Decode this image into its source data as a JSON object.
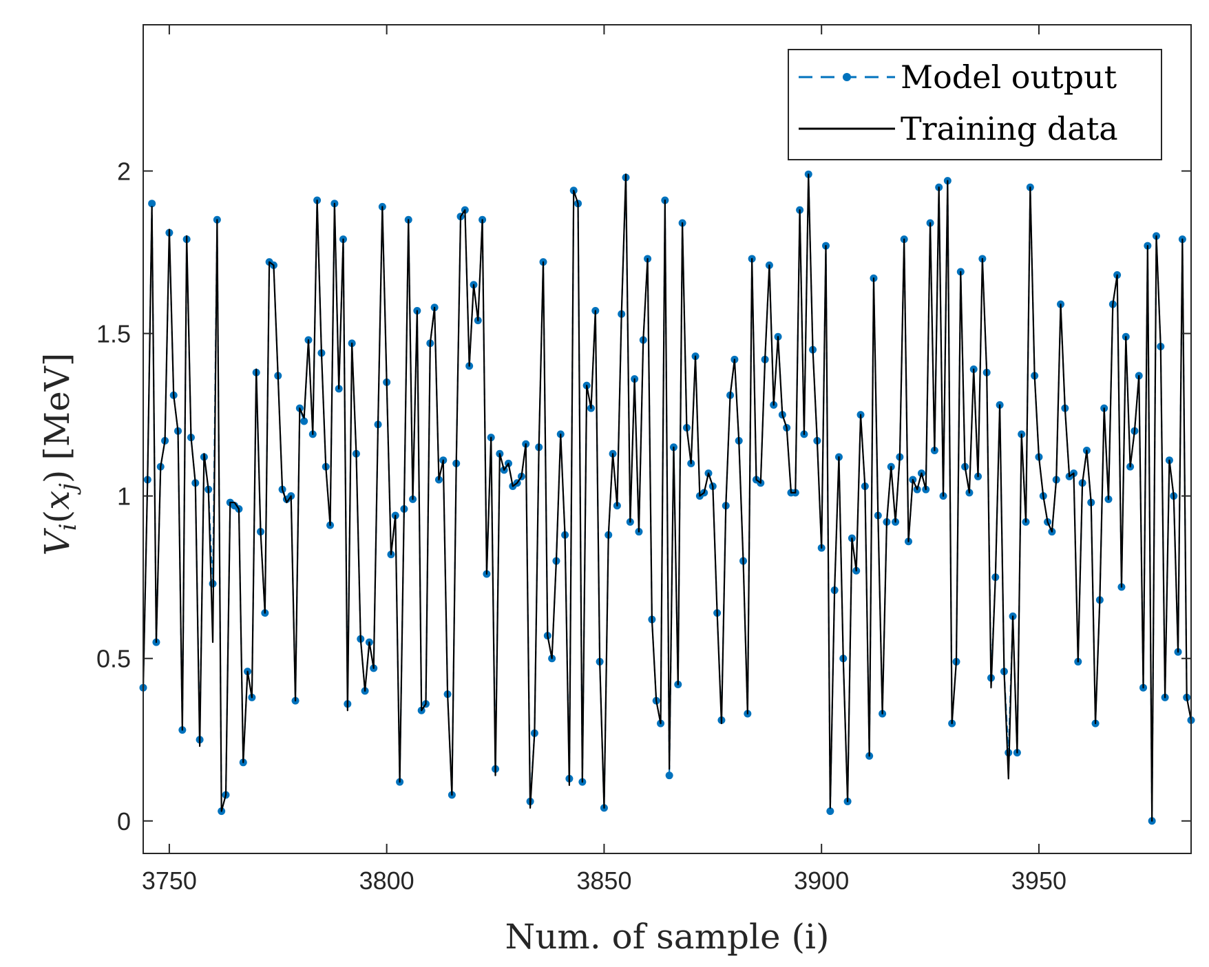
{
  "chart_data": {
    "type": "line",
    "xlabel": "Num. of sample (i)",
    "ylabel_main": "V",
    "ylabel_sub": "i",
    "ylabel_paren_open": "(",
    "ylabel_x": "x",
    "ylabel_x_sub": "j",
    "ylabel_paren_close": ")",
    "ylabel_unit": "[MeV]",
    "xlim": [
      3744,
      3985
    ],
    "ylim": [
      -0.1,
      2.45
    ],
    "x_ticks": [
      3750,
      3800,
      3850,
      3900,
      3950
    ],
    "x_tick_labels": [
      "3750",
      "3800",
      "3850",
      "3900",
      "3950"
    ],
    "y_ticks": [
      0,
      0.5,
      1,
      1.5,
      2
    ],
    "y_tick_labels": [
      "0",
      "0.5",
      "1",
      "1.5",
      "2"
    ],
    "grid": false,
    "legend_position": "top-right",
    "x_start": 3744,
    "series": [
      {
        "name": "Model output",
        "color": "#0072BD",
        "style": "dashed-with-dots",
        "values": [
          0.41,
          1.05,
          1.9,
          0.55,
          1.09,
          1.17,
          1.81,
          1.31,
          1.2,
          0.28,
          1.79,
          1.18,
          1.04,
          0.25,
          1.12,
          1.02,
          0.73,
          1.85,
          0.03,
          0.08,
          0.98,
          0.97,
          0.96,
          0.18,
          0.46,
          0.38,
          1.38,
          0.89,
          0.64,
          1.72,
          1.71,
          1.37,
          1.02,
          0.99,
          1.0,
          0.37,
          1.27,
          1.23,
          1.48,
          1.19,
          1.91,
          1.44,
          1.09,
          0.91,
          1.9,
          1.33,
          1.79,
          0.36,
          1.47,
          1.13,
          0.56,
          0.4,
          0.55,
          0.47,
          1.22,
          1.89,
          1.35,
          0.82,
          0.94,
          0.12,
          0.96,
          1.85,
          0.99,
          1.57,
          0.34,
          0.36,
          1.47,
          1.58,
          1.05,
          1.11,
          0.39,
          0.08,
          1.1,
          1.86,
          1.88,
          1.4,
          1.65,
          1.54,
          1.85,
          0.76,
          1.18,
          0.16,
          1.13,
          1.08,
          1.1,
          1.03,
          1.04,
          1.06,
          1.16,
          0.06,
          0.27,
          1.15,
          1.72,
          0.57,
          0.5,
          0.8,
          1.19,
          0.88,
          0.13,
          1.94,
          1.9,
          0.12,
          1.34,
          1.27,
          1.57,
          0.49,
          0.04,
          0.88,
          1.13,
          0.97,
          1.56,
          1.98,
          0.92,
          1.36,
          0.89,
          1.48,
          1.73,
          0.62,
          0.37,
          0.3,
          1.91,
          0.14,
          1.15,
          0.42,
          1.84,
          1.21,
          1.1,
          1.43,
          1.0,
          1.01,
          1.07,
          1.03,
          0.64,
          0.31,
          0.97,
          1.31,
          1.42,
          1.17,
          0.8,
          0.33,
          1.73,
          1.05,
          1.04,
          1.42,
          1.71,
          1.28,
          1.49,
          1.25,
          1.21,
          1.01,
          1.01,
          1.88,
          1.19,
          1.99,
          1.45,
          1.17,
          0.84,
          1.77,
          0.03,
          0.71,
          1.12,
          0.5,
          0.06,
          0.87,
          0.77,
          1.25,
          1.03,
          0.2,
          1.67,
          0.94,
          0.33,
          0.92,
          1.09,
          0.92,
          1.12,
          1.79,
          0.86,
          1.05,
          1.02,
          1.07,
          1.02,
          1.84,
          1.14,
          1.95,
          1.0,
          1.97,
          0.3,
          0.49,
          1.69,
          1.09,
          1.01,
          1.39,
          1.06,
          1.73,
          1.38,
          0.44,
          0.75,
          1.28,
          0.46,
          0.21,
          0.63,
          0.21,
          1.19,
          0.92,
          1.95,
          1.37,
          1.12,
          1.0,
          0.92,
          0.89,
          1.05,
          1.59,
          1.27,
          1.06,
          1.07,
          0.49,
          1.04,
          1.14,
          0.98,
          0.3,
          0.68,
          1.27,
          0.99,
          1.59,
          1.68,
          0.72,
          1.49,
          1.09,
          1.2,
          1.37,
          0.41,
          1.77,
          0.0,
          1.8,
          1.46,
          0.38,
          1.11,
          1.0,
          0.52,
          1.79,
          0.38,
          0.31
        ]
      },
      {
        "name": "Training data",
        "color": "#000000",
        "style": "solid",
        "values": [
          0.41,
          1.05,
          1.89,
          0.55,
          1.09,
          1.17,
          1.82,
          1.31,
          1.2,
          0.28,
          1.8,
          1.18,
          1.04,
          0.23,
          1.13,
          1.02,
          0.55,
          1.85,
          0.03,
          0.08,
          0.98,
          0.98,
          0.96,
          0.18,
          0.46,
          0.38,
          1.39,
          0.89,
          0.64,
          1.72,
          1.71,
          1.37,
          1.02,
          0.98,
          1.0,
          0.37,
          1.27,
          1.24,
          1.48,
          1.19,
          1.91,
          1.44,
          1.09,
          0.91,
          1.9,
          1.33,
          1.79,
          0.34,
          1.47,
          1.13,
          0.56,
          0.4,
          0.55,
          0.47,
          1.22,
          1.89,
          1.35,
          0.82,
          0.94,
          0.12,
          0.96,
          1.85,
          0.99,
          1.57,
          0.34,
          0.36,
          1.47,
          1.58,
          1.05,
          1.11,
          0.39,
          0.08,
          1.1,
          1.86,
          1.88,
          1.4,
          1.65,
          1.54,
          1.85,
          0.76,
          1.18,
          0.14,
          1.13,
          1.08,
          1.1,
          1.03,
          1.04,
          1.06,
          1.16,
          0.04,
          0.27,
          1.15,
          1.72,
          0.57,
          0.5,
          0.8,
          1.19,
          0.88,
          0.11,
          1.94,
          1.9,
          0.12,
          1.34,
          1.27,
          1.57,
          0.49,
          0.04,
          0.88,
          1.13,
          0.97,
          1.56,
          1.99,
          0.92,
          1.36,
          0.89,
          1.48,
          1.73,
          0.62,
          0.37,
          0.3,
          1.91,
          0.16,
          1.15,
          0.42,
          1.84,
          1.21,
          1.1,
          1.43,
          1.0,
          1.01,
          1.07,
          1.03,
          0.64,
          0.3,
          0.97,
          1.31,
          1.42,
          1.17,
          0.8,
          0.33,
          1.73,
          1.05,
          1.04,
          1.42,
          1.71,
          1.28,
          1.49,
          1.25,
          1.21,
          1.01,
          1.01,
          1.88,
          1.19,
          1.99,
          1.45,
          1.17,
          0.84,
          1.77,
          0.04,
          0.71,
          1.12,
          0.5,
          0.06,
          0.87,
          0.77,
          1.25,
          1.03,
          0.2,
          1.67,
          0.94,
          0.33,
          0.92,
          1.09,
          0.92,
          1.12,
          1.79,
          0.86,
          1.05,
          1.02,
          1.07,
          1.02,
          1.84,
          1.14,
          1.95,
          1.0,
          1.97,
          0.3,
          0.49,
          1.69,
          1.09,
          1.01,
          1.39,
          1.06,
          1.73,
          1.38,
          0.41,
          0.75,
          1.28,
          0.46,
          0.13,
          0.63,
          0.21,
          1.19,
          0.92,
          1.95,
          1.37,
          1.12,
          1.0,
          0.92,
          0.89,
          1.05,
          1.59,
          1.27,
          1.06,
          1.07,
          0.49,
          1.04,
          1.14,
          0.98,
          0.3,
          0.68,
          1.27,
          0.99,
          1.59,
          1.68,
          0.72,
          1.49,
          1.09,
          1.2,
          1.37,
          0.41,
          1.77,
          0.0,
          1.8,
          1.46,
          0.38,
          1.11,
          1.0,
          0.52,
          1.79,
          0.38,
          0.31
        ]
      }
    ]
  }
}
